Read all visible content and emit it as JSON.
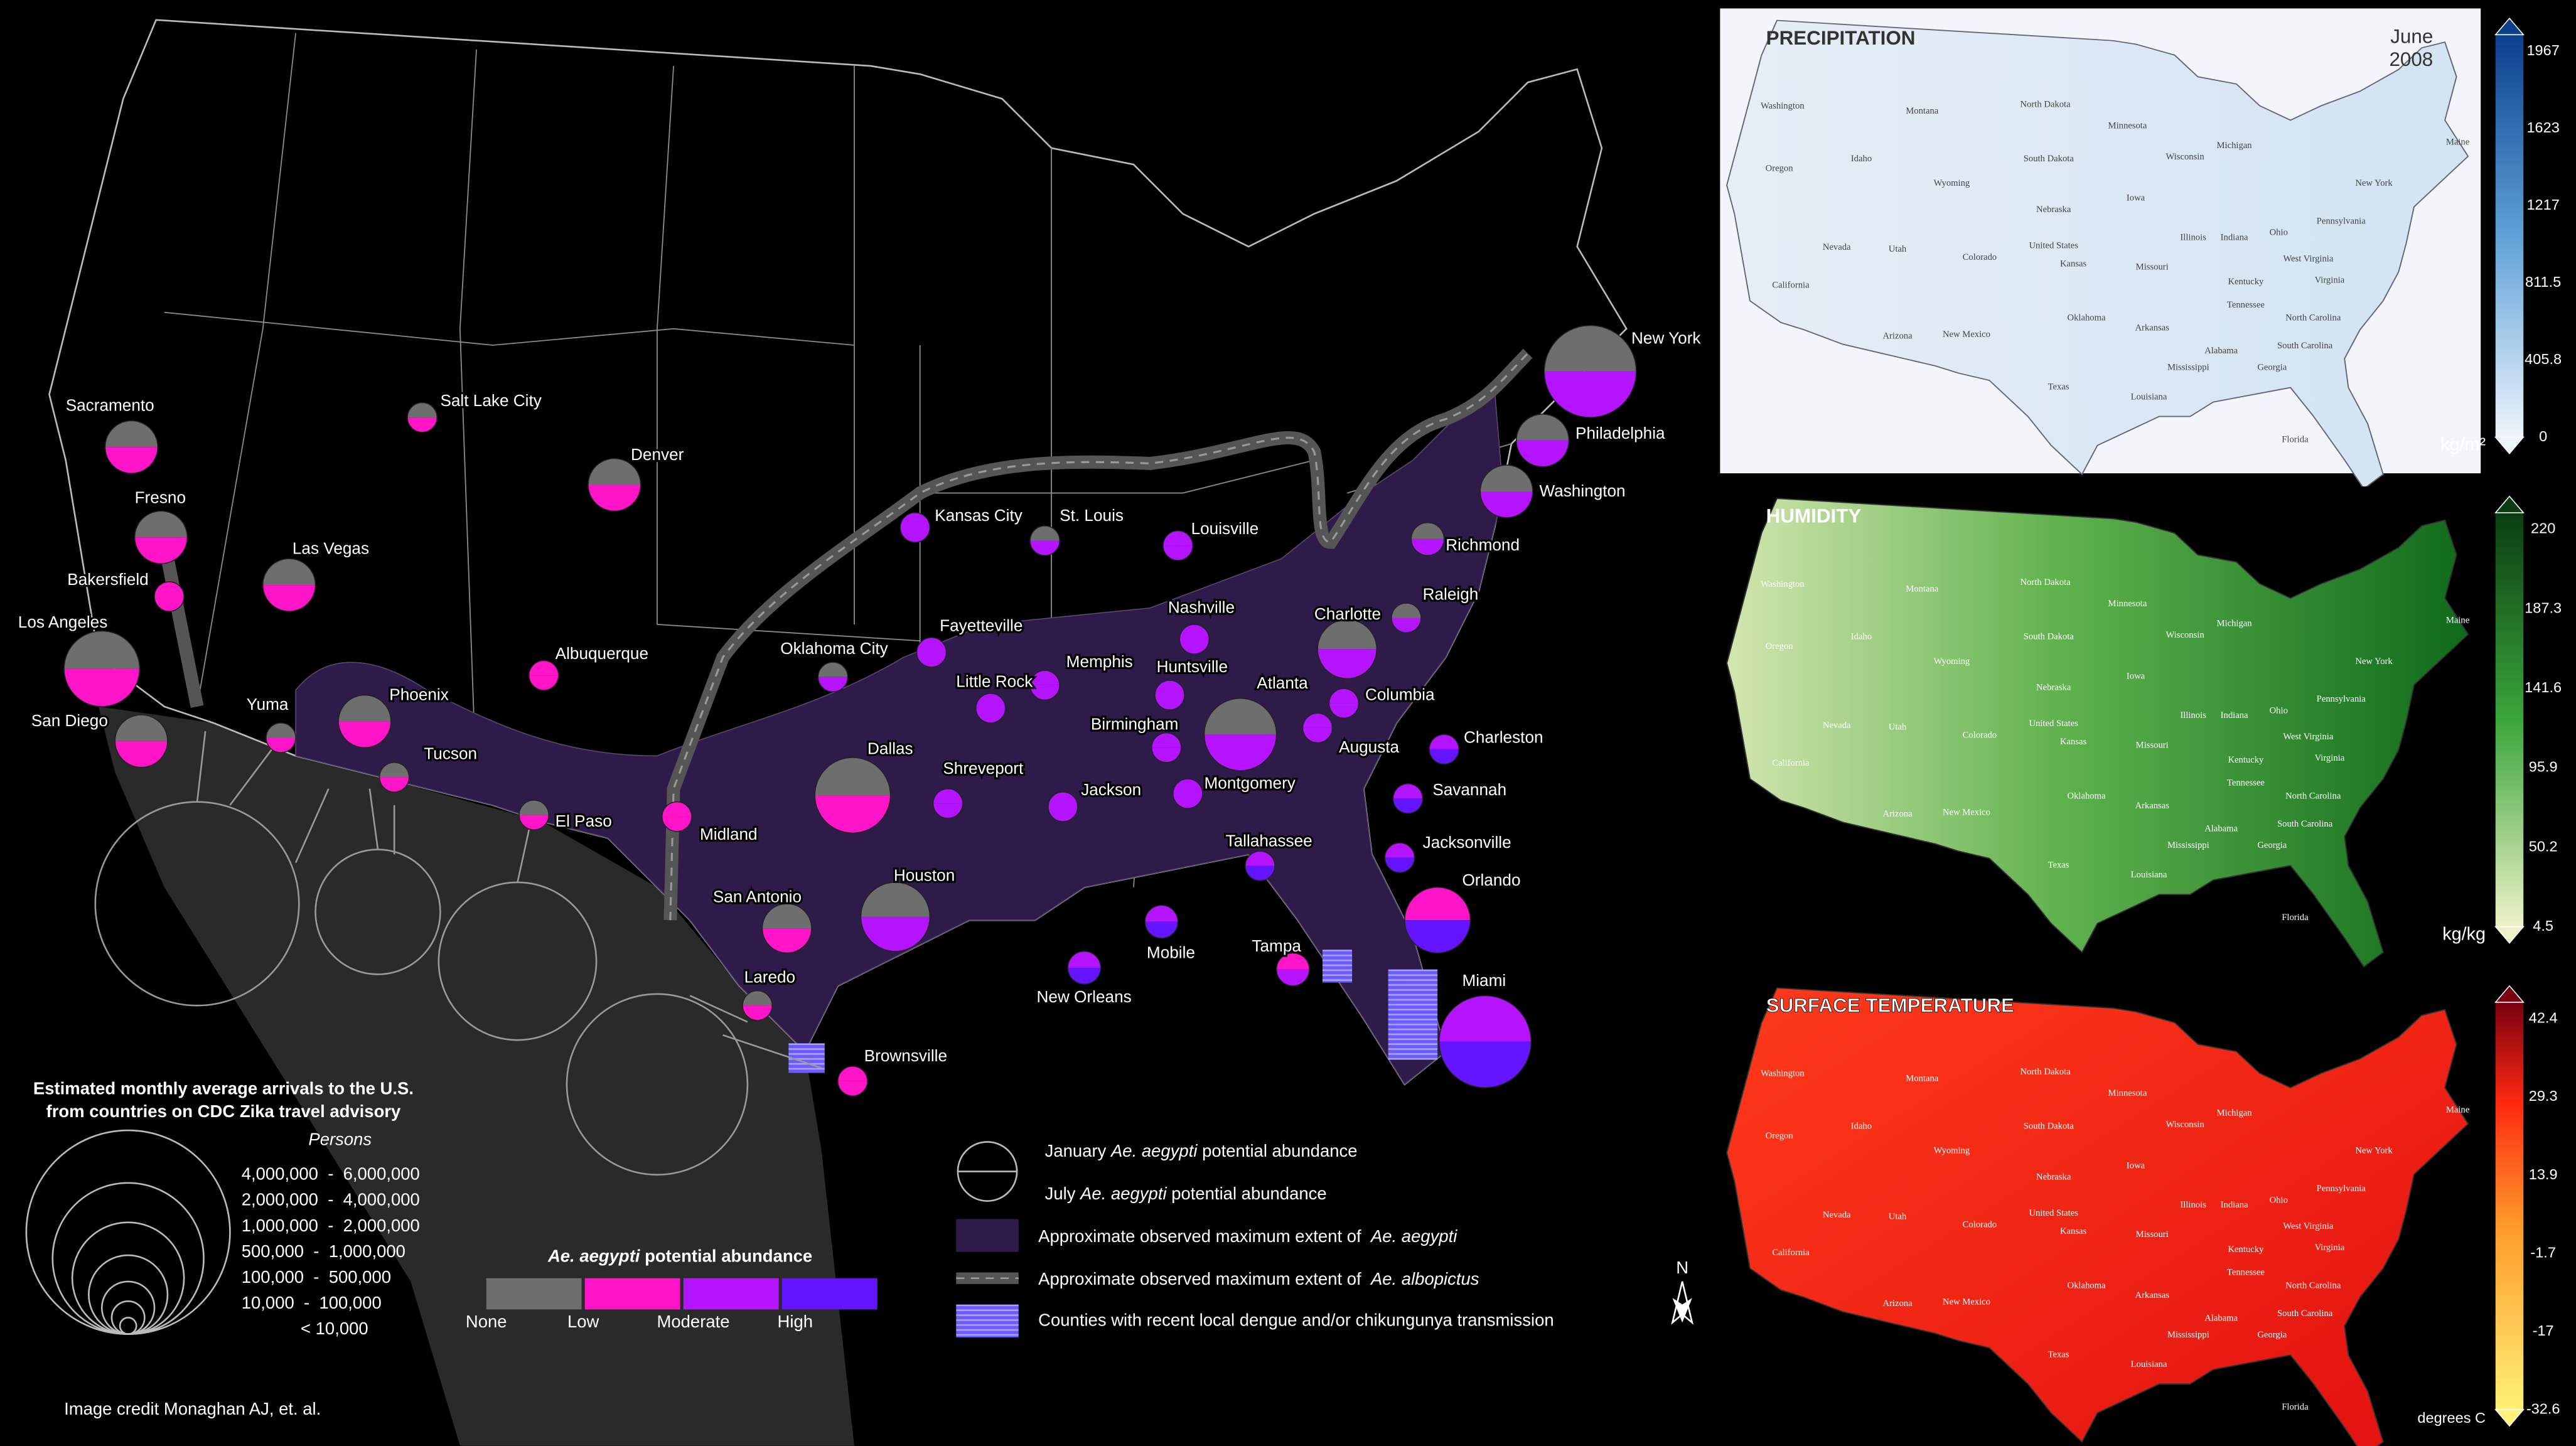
{
  "map": {
    "cities": [
      "New York",
      "Philadelphia",
      "Washington",
      "Richmond",
      "Raleigh",
      "Charlotte",
      "Charleston",
      "Columbia",
      "Augusta",
      "Savannah",
      "Jacksonville",
      "Orlando",
      "Tampa",
      "Miami",
      "Tallahassee",
      "Atlanta",
      "Montgomery",
      "Birmingham",
      "Huntsville",
      "Nashville",
      "Louisville",
      "Mobile",
      "New Orleans",
      "Jackson",
      "Memphis",
      "Little Rock",
      "Shreveport",
      "Houston",
      "Dallas",
      "San Antonio",
      "Laredo",
      "Brownsville",
      "Midland",
      "El Paso",
      "Oklahoma City",
      "Fayetteville",
      "St. Louis",
      "Kansas City",
      "Albuquerque",
      "Tucson",
      "Phoenix",
      "Yuma",
      "San Diego",
      "Los Angeles",
      "Bakersfield",
      "Las Vegas",
      "Fresno",
      "Sacramento",
      "Salt Lake City",
      "Denver"
    ],
    "arrival_legend": {
      "title": [
        "Estimated monthly average arrivals to the U.S.",
        "from countries on CDC Zika travel advisory"
      ],
      "unit": "Persons",
      "classes": [
        "4,000,000  -  6,000,000",
        "2,000,000  -  4,000,000",
        "1,000,000  -  2,000,000",
        "500,000  -  1,000,000",
        "100,000  -  500,000",
        "10,000  -  100,000",
        "< 10,000"
      ]
    },
    "abundance_legend": {
      "title": [
        "Ae. aegypti",
        " potential abundance"
      ],
      "levels": [
        "None",
        "Low",
        "Moderate",
        "High"
      ]
    },
    "key": [
      [
        "January ",
        "Ae. aegypti",
        " potential abundance"
      ],
      [
        "July ",
        "Ae. aegypti",
        " potential abundance"
      ],
      [
        "Approximate observed maximum extent of  ",
        "Ae. aegypti",
        ""
      ],
      [
        "Approximate observed maximum extent of  ",
        "Ae. albopictus",
        ""
      ],
      [
        "Counties with recent local dengue and/or chikungunya transmission",
        "",
        ""
      ]
    ],
    "north": "N",
    "credit": "Image credit Monaghan AJ, et. al."
  },
  "panels": [
    {
      "title": "PRECIPITATION",
      "date": [
        "June",
        "2008"
      ],
      "unit": "kg/m²",
      "ticks": [
        "1967",
        "1623",
        "1217",
        "811.5",
        "405.8",
        "0"
      ]
    },
    {
      "title": "HUMIDITY",
      "unit": "kg/kg",
      "ticks": [
        "220",
        "187.3",
        "141.6",
        "95.9",
        "50.2",
        "4.5"
      ]
    },
    {
      "title": "SURFACE TEMPERATURE",
      "unit": "degrees C",
      "ticks": [
        "42.4",
        "29.3",
        "13.9",
        "-1.7",
        "-17",
        "-32.6"
      ]
    }
  ],
  "states": [
    "Washington",
    "Montana",
    "North Dakota",
    "Minnesota",
    "Oregon",
    "Idaho",
    "South Dakota",
    "Wisconsin",
    "Michigan",
    "Maine",
    "Wyoming",
    "Nebraska",
    "Iowa",
    "Illinois",
    "Indiana",
    "Ohio",
    "Pennsylvania",
    "New York",
    "Nevada",
    "Utah",
    "Colorado",
    "United States",
    "Kansas",
    "Missouri",
    "Kentucky",
    "West Virginia",
    "Virginia",
    "California",
    "Arizona",
    "New Mexico",
    "Oklahoma",
    "Arkansas",
    "Tennessee",
    "North Carolina",
    "South Carolina",
    "Georgia",
    "Texas",
    "Mississippi",
    "Alabama",
    "Louisiana",
    "Florida"
  ]
}
